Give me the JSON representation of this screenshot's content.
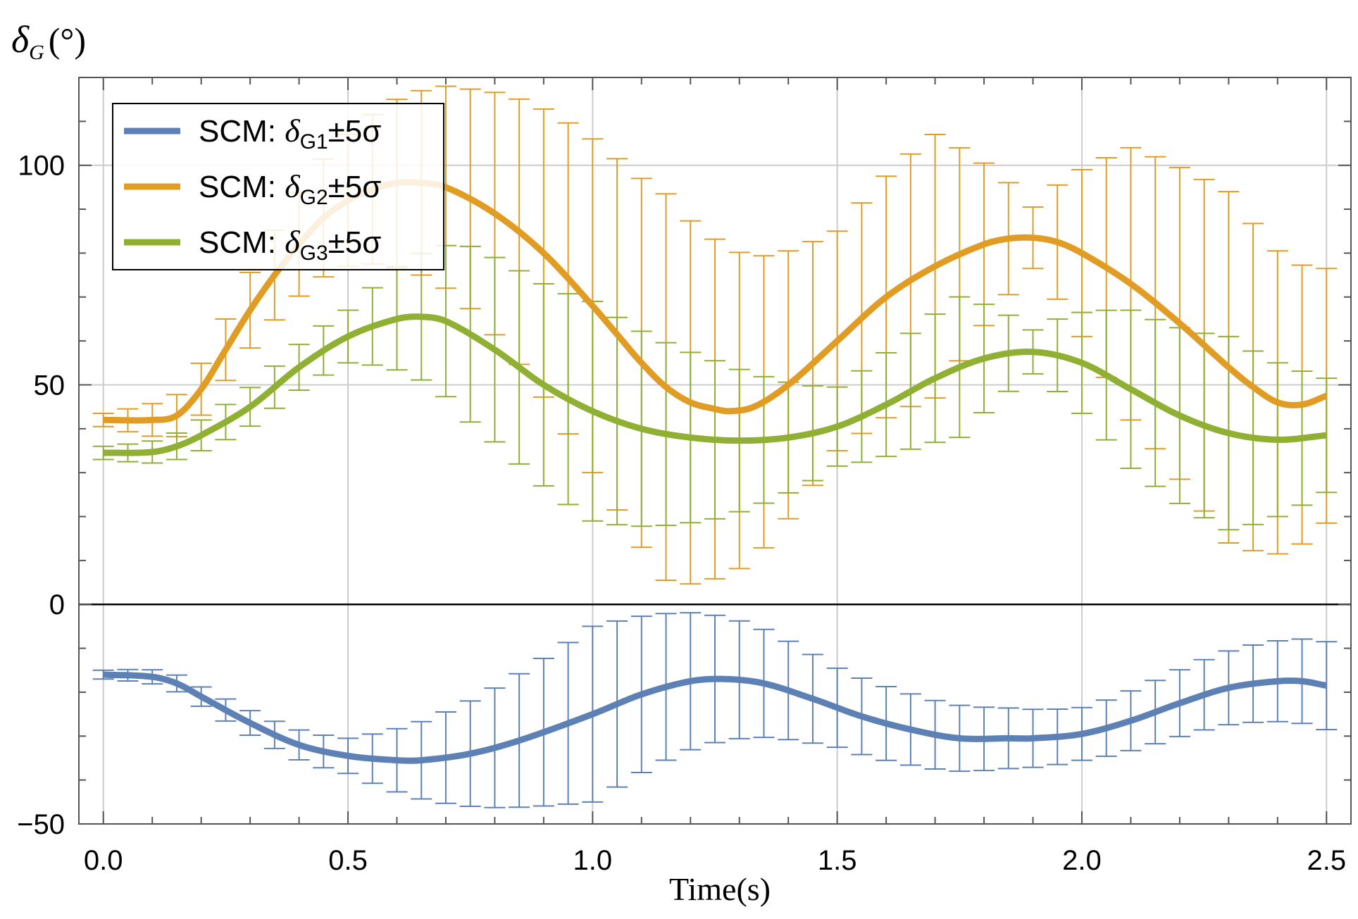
{
  "chart_data": {
    "type": "line",
    "title": "",
    "ylabel": {
      "symbol": "δ",
      "subscript": "G",
      "unit": "(°)"
    },
    "xlabel": "Time(s)",
    "xlim": [
      -0.05,
      2.55
    ],
    "ylim": [
      -50,
      120
    ],
    "xticks": [
      0.0,
      0.5,
      1.0,
      1.5,
      2.0,
      2.5
    ],
    "xtick_labels": [
      "0.0",
      "0.5",
      "1.0",
      "1.5",
      "2.0",
      "2.5"
    ],
    "yticks": [
      -50,
      0,
      50,
      100
    ],
    "ytick_labels": [
      "−50",
      "0",
      "50",
      "100"
    ],
    "grid": true,
    "legend_position": "top-left",
    "series": [
      {
        "name": "SCM: δG1±5σ",
        "legend": {
          "prefix": "SCM: ",
          "symbol": "δ",
          "sub": "G1",
          "suffix": "±5σ"
        },
        "color": "#5e81b5",
        "x": [
          0.0,
          0.1,
          0.15,
          0.2,
          0.3,
          0.4,
          0.5,
          0.6,
          0.65,
          0.75,
          0.85,
          1.0,
          1.1,
          1.2,
          1.27,
          1.35,
          1.45,
          1.55,
          1.65,
          1.75,
          1.85,
          1.9,
          2.0,
          2.1,
          2.2,
          2.3,
          2.4,
          2.45,
          2.5
        ],
        "y": [
          -16,
          -16.5,
          -18,
          -21,
          -27,
          -32,
          -34.5,
          -35.5,
          -35.5,
          -34,
          -31,
          -25,
          -20.5,
          -17.5,
          -17,
          -18,
          -21.5,
          -25.5,
          -28.5,
          -30.5,
          -30.5,
          -30.5,
          -29.5,
          -26.5,
          -22.5,
          -19,
          -17.5,
          -17.5,
          -18.5
        ],
        "err": [
          {
            "x": [
              0.0,
              0.5,
              1.0,
              1.5,
              2.0,
              2.5
            ],
            "e": [
              1,
              4,
              20,
              9,
              6,
              10
            ]
          }
        ]
      },
      {
        "name": "SCM: δG2±5σ",
        "legend": {
          "prefix": "SCM: ",
          "symbol": "δ",
          "sub": "G2",
          "suffix": "±5σ"
        },
        "color": "#e19c24",
        "x": [
          0.0,
          0.1,
          0.15,
          0.2,
          0.25,
          0.3,
          0.35,
          0.4,
          0.45,
          0.5,
          0.55,
          0.6,
          0.65,
          0.7,
          0.8,
          0.9,
          1.0,
          1.05,
          1.1,
          1.15,
          1.2,
          1.25,
          1.28,
          1.33,
          1.4,
          1.5,
          1.6,
          1.7,
          1.8,
          1.85,
          1.9,
          1.95,
          2.0,
          2.1,
          2.2,
          2.3,
          2.35,
          2.4,
          2.45,
          2.5
        ],
        "y": [
          42,
          42,
          43,
          49,
          58,
          67,
          75,
          82,
          88,
          92,
          94.5,
          96,
          96,
          95,
          89,
          80,
          68,
          61.5,
          55,
          49.5,
          46,
          44.5,
          44,
          45,
          50,
          60,
          70,
          77,
          82,
          83.3,
          83.5,
          82.5,
          80,
          73,
          64,
          54,
          49.5,
          46,
          45.5,
          47.5
        ],
        "err": [
          {
            "x": [
              0.0,
              0.25,
              0.5,
              0.75,
              1.0,
              1.15,
              1.3,
              1.5,
              1.7,
              1.9,
              2.1,
              2.3,
              2.5
            ],
            "e": [
              1.5,
              7,
              15,
              25,
              38,
              44,
              36,
              25,
              30,
              7,
              31,
              40,
              29
            ]
          }
        ]
      },
      {
        "name": "SCM: δG3±5σ",
        "legend": {
          "prefix": "SCM: ",
          "symbol": "δ",
          "sub": "G3",
          "suffix": "±5σ"
        },
        "color": "#8fb032",
        "x": [
          0.0,
          0.1,
          0.15,
          0.2,
          0.3,
          0.4,
          0.5,
          0.6,
          0.65,
          0.7,
          0.8,
          0.9,
          1.0,
          1.1,
          1.2,
          1.3,
          1.4,
          1.5,
          1.6,
          1.7,
          1.8,
          1.9,
          2.0,
          2.1,
          2.2,
          2.3,
          2.4,
          2.5
        ],
        "y": [
          34.5,
          34.7,
          36,
          38.5,
          45,
          54,
          61,
          65,
          65.5,
          64.5,
          58,
          50,
          44,
          40,
          38,
          37.3,
          38,
          40.5,
          45.5,
          51.5,
          56,
          57.5,
          55,
          49,
          43,
          39,
          37.5,
          38.5
        ],
        "err": [
          {
            "x": [
              0.0,
              0.25,
              0.5,
              0.75,
              1.0,
              1.25,
              1.5,
              1.75,
              1.9,
              2.1,
              2.3,
              2.5
            ],
            "e": [
              1.5,
              4,
              6,
              20,
              25,
              18,
              9,
              16,
              5,
              18,
              22,
              13
            ]
          }
        ]
      }
    ]
  }
}
